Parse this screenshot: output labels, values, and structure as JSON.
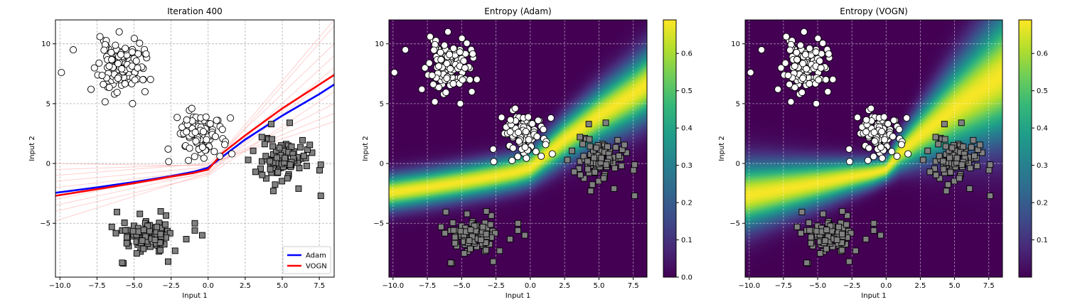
{
  "figure": {
    "panel_count": 3
  },
  "chart_data": [
    {
      "type": "scatter",
      "title": "Iteration 400",
      "xlabel": "Input 1",
      "ylabel": "Input 2",
      "xlim": [
        -10.3,
        8.5
      ],
      "ylim": [
        -9.5,
        12.0
      ],
      "xticks": [
        -10.0,
        -7.5,
        -5.0,
        -2.5,
        0.0,
        2.5,
        5.0,
        7.5
      ],
      "yticks": [
        -5,
        0,
        5,
        10
      ],
      "xtick_labels": [
        "−10.0",
        "−7.5",
        "−5.0",
        "−2.5",
        "0.0",
        "2.5",
        "5.0",
        "7.5"
      ],
      "ytick_labels": [
        "−5",
        "0",
        "5",
        "10"
      ],
      "grid": true,
      "legend": {
        "placement": "lower-right",
        "entries": [
          "Adam",
          "VOGN"
        ]
      },
      "series": [
        {
          "name": "Adam",
          "kind": "line",
          "color": "#0000ff",
          "x": [
            -10.3,
            -7.5,
            -5.0,
            -2.5,
            -1.0,
            0.0,
            1.0,
            2.5,
            5.0,
            7.5,
            8.5
          ],
          "y": [
            -2.45,
            -2.0,
            -1.55,
            -1.05,
            -0.7,
            -0.35,
            0.6,
            2.0,
            4.0,
            5.8,
            6.6
          ]
        },
        {
          "name": "VOGN",
          "kind": "line",
          "color": "#ff0000",
          "x": [
            -10.3,
            -7.5,
            -5.0,
            -2.5,
            -1.0,
            0.0,
            1.0,
            2.5,
            5.0,
            7.5,
            8.5
          ],
          "y": [
            -2.7,
            -2.15,
            -1.65,
            -1.1,
            -0.8,
            -0.5,
            0.9,
            2.35,
            4.6,
            6.6,
            7.4
          ]
        }
      ],
      "sample_lines_color": "#ffb0b0",
      "sample_lines": [
        {
          "x": [
            -10.3,
            0.0,
            8.5
          ],
          "y": [
            -1.5,
            -0.3,
            5.0
          ]
        },
        {
          "x": [
            -10.3,
            0.0,
            8.5
          ],
          "y": [
            -3.5,
            -0.7,
            9.0
          ]
        },
        {
          "x": [
            -10.3,
            0.0,
            8.5
          ],
          "y": [
            -2.0,
            -0.6,
            11.5
          ]
        },
        {
          "x": [
            -10.3,
            0.0,
            8.5
          ],
          "y": [
            -1.0,
            0.0,
            3.5
          ]
        },
        {
          "x": [
            -10.3,
            0.0,
            8.5
          ],
          "y": [
            -4.0,
            -1.0,
            6.0
          ]
        },
        {
          "x": [
            -10.3,
            0.0,
            8.5
          ],
          "y": [
            0.0,
            -0.2,
            4.2
          ]
        },
        {
          "x": [
            -10.3,
            0.0,
            8.5
          ],
          "y": [
            -3.0,
            -0.4,
            12.0
          ]
        },
        {
          "x": [
            -10.3,
            0.0,
            8.5
          ],
          "y": [
            -2.5,
            -0.9,
            7.5
          ]
        },
        {
          "x": [
            -10.3,
            0.0,
            8.5
          ],
          "y": [
            -0.5,
            -0.1,
            10.0
          ]
        },
        {
          "x": [
            -10.3,
            0.0,
            8.5
          ],
          "y": [
            -4.8,
            -0.8,
            8.0
          ]
        }
      ],
      "clusters": [
        {
          "class": "circle",
          "cx": -5.9,
          "cy": 8.0,
          "sx": 0.75,
          "sy": 1.0,
          "n": 120,
          "seed": 11
        },
        {
          "class": "circle",
          "cx": -0.6,
          "cy": 2.4,
          "sx": 0.8,
          "sy": 1.0,
          "n": 85,
          "seed": 23
        },
        {
          "class": "square",
          "cx": 5.2,
          "cy": 0.5,
          "sx": 0.8,
          "sy": 0.9,
          "n": 90,
          "seed": 37
        },
        {
          "class": "square",
          "cx": -4.1,
          "cy": -6.0,
          "sx": 0.8,
          "sy": 0.7,
          "n": 110,
          "seed": 41
        }
      ],
      "outliers": [
        {
          "class": "circle",
          "x": -9.1,
          "y": 9.5
        },
        {
          "class": "circle",
          "x": -9.9,
          "y": 7.6
        },
        {
          "class": "circle",
          "x": -7.9,
          "y": 6.2
        },
        {
          "class": "circle",
          "x": -6.0,
          "y": 11.0
        },
        {
          "class": "circle",
          "x": -7.3,
          "y": 10.6
        },
        {
          "class": "circle",
          "x": -4.4,
          "y": 7.0
        },
        {
          "class": "circle",
          "x": -5.1,
          "y": 5.0
        },
        {
          "class": "circle",
          "x": -2.7,
          "y": 1.2
        },
        {
          "class": "circle",
          "x": 1.6,
          "y": 0.8
        },
        {
          "class": "circle",
          "x": 1.5,
          "y": 3.8
        },
        {
          "class": "circle",
          "x": -1.1,
          "y": 4.6
        },
        {
          "class": "square",
          "x": -6.5,
          "y": -5.3
        },
        {
          "class": "square",
          "x": -3.2,
          "y": -4.0
        },
        {
          "class": "square",
          "x": -5.8,
          "y": -8.3
        },
        {
          "class": "square",
          "x": -2.7,
          "y": -8.2
        },
        {
          "class": "square",
          "x": -0.9,
          "y": -5.0
        },
        {
          "class": "square",
          "x": -0.9,
          "y": -5.6
        },
        {
          "class": "square",
          "x": -0.4,
          "y": -6.0
        },
        {
          "class": "square",
          "x": 7.6,
          "y": -2.7
        },
        {
          "class": "square",
          "x": 7.6,
          "y": -0.1
        },
        {
          "class": "square",
          "x": 6.1,
          "y": -2.1
        },
        {
          "class": "square",
          "x": 4.4,
          "y": -2.3
        },
        {
          "class": "square",
          "x": 5.5,
          "y": 3.4
        },
        {
          "class": "square",
          "x": 2.7,
          "y": 0.3
        },
        {
          "class": "square",
          "x": 3.2,
          "y": -0.7
        }
      ]
    },
    {
      "type": "heatmap",
      "title": "Entropy (Adam)",
      "xlabel": "Input 1",
      "ylabel": "Input 2",
      "xlim": [
        -10.3,
        8.5
      ],
      "ylim": [
        -9.5,
        12.0
      ],
      "xticks": [
        -10.0,
        -7.5,
        -5.0,
        -2.5,
        0.0,
        2.5,
        5.0,
        7.5
      ],
      "yticks": [
        -5,
        0,
        5,
        10
      ],
      "xtick_labels": [
        "−10.0",
        "−7.5",
        "−5.0",
        "−2.5",
        "0.0",
        "2.5",
        "5.0",
        "7.5"
      ],
      "ytick_labels": [
        "−5",
        "0",
        "5",
        "10"
      ],
      "grid": true,
      "colormap": "viridis",
      "colorbar": {
        "range": [
          0.0,
          0.69
        ],
        "ticks": [
          0.0,
          0.1,
          0.2,
          0.3,
          0.4,
          0.5,
          0.6
        ],
        "tick_labels": [
          "0.0",
          "0.1",
          "0.2",
          "0.3",
          "0.4",
          "0.5",
          "0.6"
        ]
      },
      "boundary": {
        "x": [
          -10.3,
          -7.5,
          -5.0,
          -2.5,
          -1.0,
          0.0,
          1.0,
          2.5,
          5.0,
          7.5,
          8.5
        ],
        "y": [
          -2.45,
          -2.0,
          -1.55,
          -1.05,
          -0.7,
          -0.35,
          0.6,
          2.0,
          4.0,
          5.8,
          6.6
        ]
      },
      "entropy_band": {
        "width_base": 1.5,
        "width_growth": 0.18,
        "width_left": 0.0
      }
    },
    {
      "type": "heatmap",
      "title": "Entropy (VOGN)",
      "xlabel": "Input 1",
      "ylabel": "Input 2",
      "xlim": [
        -10.3,
        8.5
      ],
      "ylim": [
        -9.5,
        12.0
      ],
      "xticks": [
        -10.0,
        -7.5,
        -5.0,
        -2.5,
        0.0,
        2.5,
        5.0,
        7.5
      ],
      "yticks": [
        -5,
        0,
        5,
        10
      ],
      "xtick_labels": [
        "−10.0",
        "−7.5",
        "−5.0",
        "−2.5",
        "0.0",
        "2.5",
        "5.0",
        "7.5"
      ],
      "ytick_labels": [
        "−5",
        "0",
        "5",
        "10"
      ],
      "grid": true,
      "colormap": "viridis",
      "colorbar": {
        "range": [
          0.0,
          0.69
        ],
        "ticks": [
          0.1,
          0.2,
          0.3,
          0.4,
          0.5,
          0.6
        ],
        "tick_labels": [
          "0.1",
          "0.2",
          "0.3",
          "0.4",
          "0.5",
          "0.6"
        ]
      },
      "boundary": {
        "x": [
          -10.3,
          -7.5,
          -5.0,
          -2.5,
          -1.0,
          0.0,
          1.0,
          2.5,
          5.0,
          7.5,
          8.5
        ],
        "y": [
          -2.7,
          -2.15,
          -1.65,
          -1.1,
          -0.8,
          -0.5,
          0.9,
          2.35,
          4.6,
          6.6,
          7.4
        ]
      },
      "entropy_band": {
        "width_base": 1.0,
        "width_growth": 0.55,
        "width_left": 0.18
      }
    }
  ]
}
